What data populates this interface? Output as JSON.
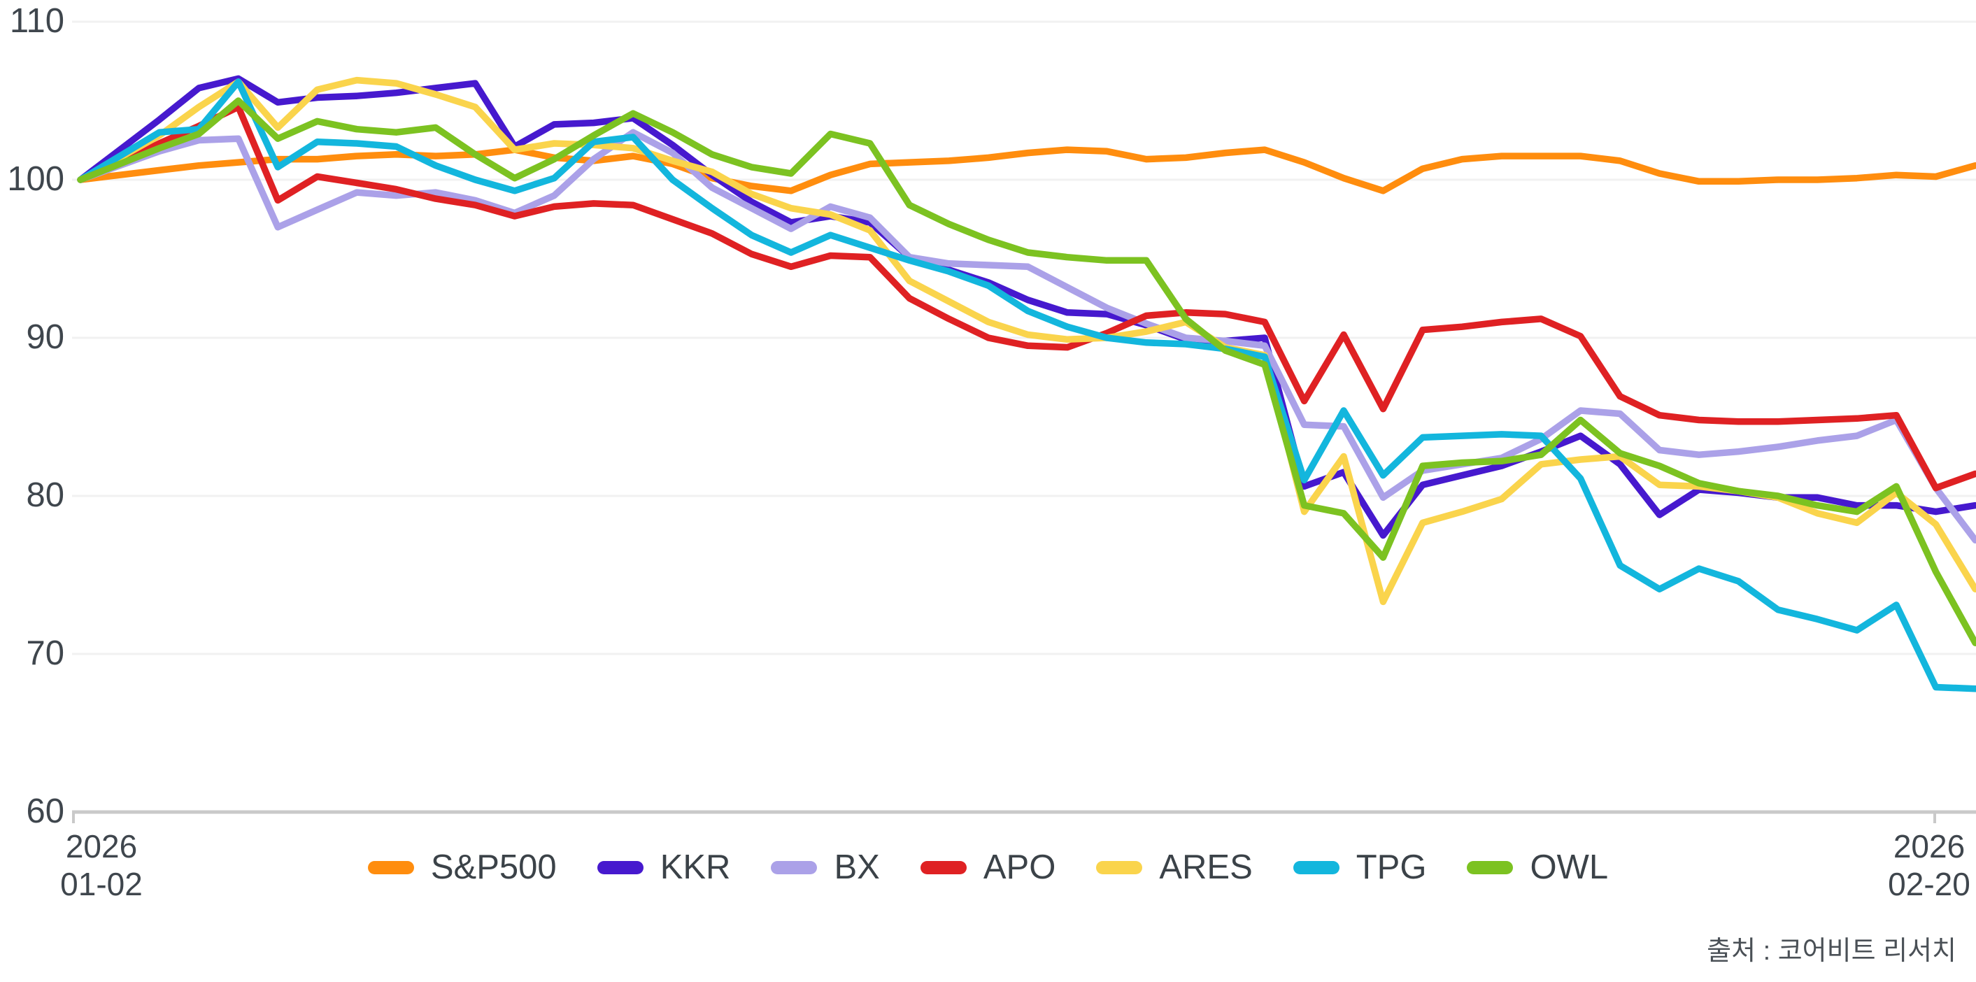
{
  "chart_data": {
    "type": "line",
    "title": "",
    "x_axis": {
      "first_label_line1": "2026",
      "first_label_line2": "01-02",
      "last_label_line1": "2026",
      "last_label_line2": "02-20",
      "num_points": 49
    },
    "y_axis": {
      "ticks": [
        110,
        100,
        90,
        80,
        70,
        60
      ],
      "min": 60,
      "max": 110
    },
    "legend_position": "bottom-center",
    "grid": true,
    "series": [
      {
        "name": "S&P500",
        "color": "#FF8D0E",
        "values": [
          100,
          100.3,
          100.6,
          100.9,
          101.1,
          101.3,
          101.3,
          101.5,
          101.6,
          101.5,
          101.6,
          101.9,
          101.4,
          101.2,
          101.5,
          101.0,
          100.1,
          99.6,
          99.3,
          100.3,
          101.0,
          101.1,
          101.2,
          101.4,
          101.7,
          101.9,
          101.8,
          101.3,
          101.4,
          101.7,
          101.9,
          101.1,
          100.1,
          99.3,
          100.7,
          101.3,
          101.5,
          101.5,
          101.5,
          101.2,
          100.4,
          99.9,
          99.9,
          100.0,
          100.0,
          100.1,
          100.3,
          100.2,
          100.9
        ]
      },
      {
        "name": "KKR",
        "color": "#4619CE",
        "values": [
          100,
          101.9,
          103.8,
          105.8,
          106.4,
          104.9,
          105.2,
          105.3,
          105.5,
          105.8,
          106.1,
          102.1,
          103.5,
          103.6,
          103.9,
          102.2,
          100.3,
          98.6,
          97.3,
          97.7,
          97.3,
          95.1,
          94.3,
          93.5,
          92.4,
          91.6,
          91.5,
          90.8,
          89.9,
          89.8,
          90.0,
          80.6,
          81.5,
          77.5,
          80.7,
          81.3,
          81.9,
          82.8,
          83.8,
          82.0,
          78.8,
          80.4,
          80.2,
          79.9,
          79.9,
          79.4,
          79.4,
          79.0,
          79.4
        ]
      },
      {
        "name": "BX",
        "color": "#ABA1E8",
        "values": [
          100,
          100.9,
          101.8,
          102.5,
          102.6,
          97.0,
          98.1,
          99.2,
          99.0,
          99.2,
          98.7,
          97.9,
          99.0,
          101.3,
          103.0,
          101.7,
          99.5,
          98.2,
          96.9,
          98.3,
          97.6,
          95.1,
          94.7,
          94.6,
          94.5,
          93.2,
          91.9,
          90.9,
          90.0,
          89.8,
          89.5,
          84.5,
          84.4,
          79.9,
          81.6,
          82.0,
          82.4,
          83.6,
          85.4,
          85.2,
          82.9,
          82.6,
          82.8,
          83.1,
          83.5,
          83.8,
          84.8,
          80.5,
          77.2
        ]
      },
      {
        "name": "APO",
        "color": "#DF2123",
        "values": [
          100,
          101.1,
          102.3,
          103.4,
          104.6,
          98.7,
          100.2,
          99.8,
          99.4,
          98.8,
          98.4,
          97.7,
          98.3,
          98.5,
          98.4,
          97.5,
          96.6,
          95.3,
          94.5,
          95.2,
          95.1,
          92.5,
          91.2,
          90.0,
          89.5,
          89.4,
          90.3,
          91.4,
          91.6,
          91.5,
          91.0,
          86.0,
          90.2,
          85.5,
          90.5,
          90.7,
          91.0,
          91.2,
          90.1,
          86.3,
          85.1,
          84.8,
          84.7,
          84.7,
          84.8,
          84.9,
          85.1,
          80.5,
          81.4
        ]
      },
      {
        "name": "ARES",
        "color": "#FAD44C",
        "values": [
          100,
          101.4,
          102.8,
          104.6,
          106.2,
          103.3,
          105.7,
          106.3,
          106.1,
          105.4,
          104.6,
          101.9,
          102.3,
          102.2,
          102.0,
          101.2,
          100.5,
          99.1,
          98.2,
          97.8,
          96.8,
          93.6,
          92.3,
          91.0,
          90.2,
          89.9,
          90.0,
          90.4,
          91.0,
          89.4,
          88.9,
          79.0,
          82.5,
          73.3,
          78.3,
          79.0,
          79.8,
          82.0,
          82.3,
          82.5,
          80.7,
          80.6,
          80.3,
          79.9,
          78.9,
          78.3,
          80.2,
          78.2,
          74.1
        ]
      },
      {
        "name": "TPG",
        "color": "#13B6DD",
        "values": [
          100,
          101.5,
          103.0,
          103.2,
          106.2,
          100.8,
          102.4,
          102.3,
          102.1,
          100.9,
          100.0,
          99.3,
          100.1,
          102.4,
          102.7,
          100.0,
          98.2,
          96.5,
          95.4,
          96.5,
          95.7,
          94.9,
          94.2,
          93.3,
          91.7,
          90.7,
          90.0,
          89.7,
          89.6,
          89.3,
          88.8,
          81.0,
          85.4,
          81.3,
          83.7,
          83.8,
          83.9,
          83.8,
          81.1,
          75.6,
          74.1,
          75.4,
          74.6,
          72.8,
          72.2,
          71.5,
          73.1,
          67.9,
          67.8
        ]
      },
      {
        "name": "OWL",
        "color": "#7CC221",
        "values": [
          100,
          101.0,
          102.0,
          102.9,
          105.0,
          102.6,
          103.7,
          103.2,
          103.0,
          103.3,
          101.6,
          100.1,
          101.3,
          102.8,
          104.2,
          103.0,
          101.6,
          100.8,
          100.4,
          102.9,
          102.3,
          98.4,
          97.2,
          96.2,
          95.4,
          95.1,
          94.9,
          94.9,
          91.2,
          89.2,
          88.3,
          79.4,
          78.9,
          76.1,
          81.9,
          82.1,
          82.2,
          82.6,
          84.8,
          82.7,
          81.9,
          80.8,
          80.3,
          80.0,
          79.4,
          79.0,
          80.6,
          75.2,
          70.7
        ]
      }
    ]
  },
  "source_note": "출처 : 코어비트 리서치",
  "colors": {
    "axis_text": "#3F464D",
    "grid_line": "#F1F1F1",
    "axis_line": "#C9C9C9",
    "source_text": "#4A5056"
  }
}
